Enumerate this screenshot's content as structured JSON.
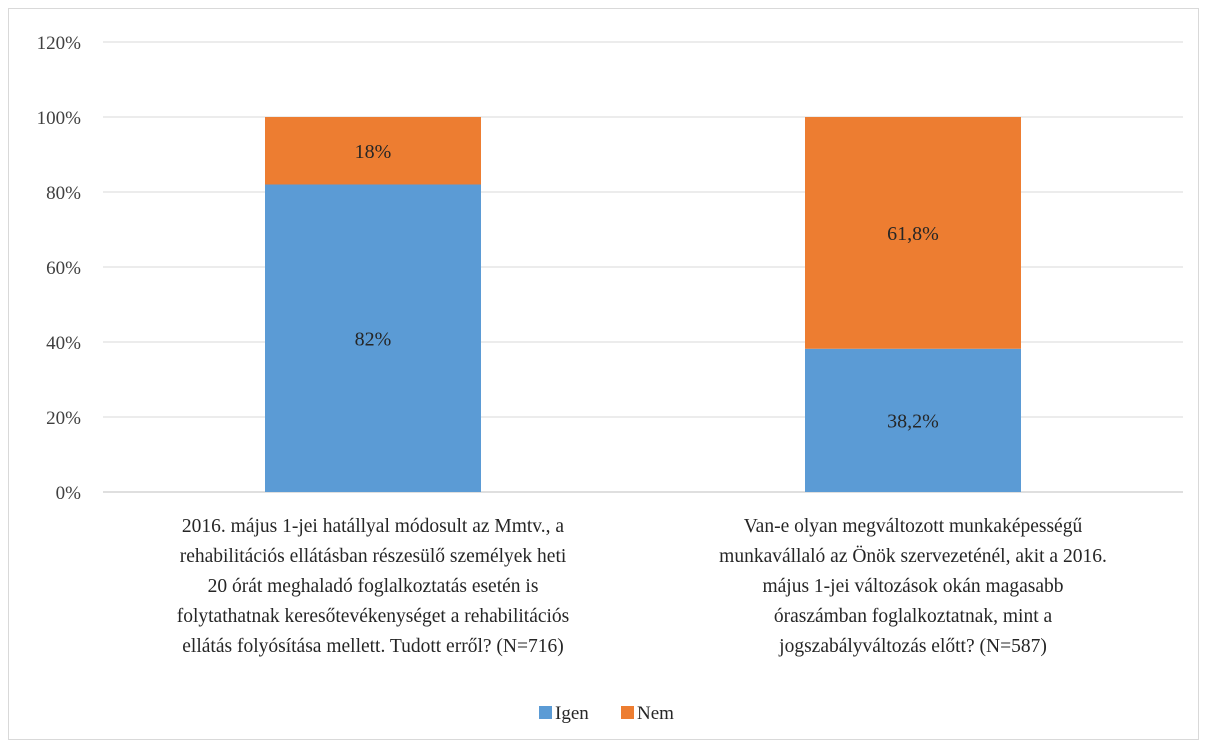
{
  "colors": {
    "igen": "#5b9bd5",
    "nem": "#ed7d31",
    "grid": "#d9d9d9",
    "axis": "#bfbfbf"
  },
  "chart_data": {
    "type": "bar",
    "stacked": true,
    "ylim": [
      0,
      120
    ],
    "yticks": [
      0,
      20,
      40,
      60,
      80,
      100,
      120
    ],
    "ytick_labels": [
      "0%",
      "20%",
      "40%",
      "60%",
      "80%",
      "100%",
      "120%"
    ],
    "grid": true,
    "legend_position": "bottom",
    "categories": [
      [
        "2016. május 1-jei hatállyal módosult az Mmtv., a",
        "rehabilitációs ellátásban részesülő személyek heti",
        "20 órát meghaladó foglalkoztatás esetén is",
        "folytathatnak keresőtevékenységet a rehabilitációs",
        "ellátás folyósítása mellett. Tudott erről? (N=716)"
      ],
      [
        "Van-e olyan megváltozott munkaképességű",
        "munkavállaló az Önök szervezeténél, akit a 2016.",
        "május 1-jei változások okán magasabb",
        "óraszámban foglalkoztatnak, mint a",
        "jogszabályváltozás előtt? (N=587)"
      ]
    ],
    "series": [
      {
        "name": "Igen",
        "values": [
          82,
          38.2
        ],
        "labels": [
          "82%",
          "38,2%"
        ]
      },
      {
        "name": "Nem",
        "values": [
          18,
          61.8
        ],
        "labels": [
          "18%",
          "61,8%"
        ]
      }
    ]
  }
}
